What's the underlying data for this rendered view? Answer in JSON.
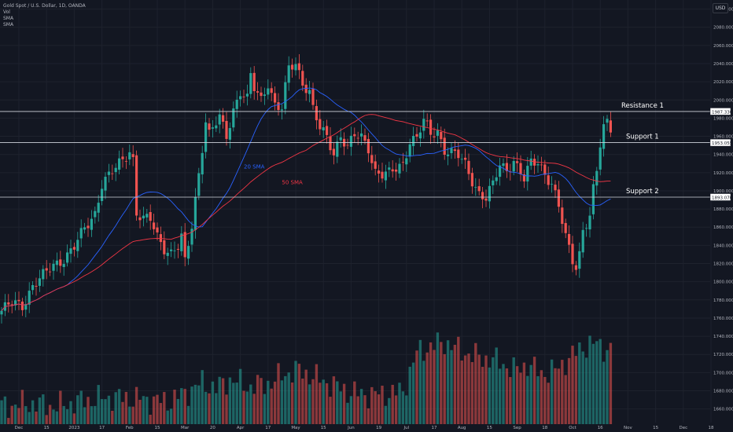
{
  "header": {
    "symbol": "Gold Spot / U.S. Dollar, 1D, OANDA",
    "vol_label": "Vol",
    "sma1_label": "SMA",
    "sma2_label": "SMA"
  },
  "currency": "USD",
  "colors": {
    "background": "#131722",
    "grid": "#1e222d",
    "up": "#26a69a",
    "down": "#ef5350",
    "sma20": "#2962ff",
    "sma50": "#f23645",
    "level_line": "#d1d4dc",
    "axis_text": "#b2b5be"
  },
  "chart_data": {
    "type": "candlestick",
    "ylim": [
      1645,
      2110
    ],
    "y_ticks": [
      1660,
      1680,
      1700,
      1720,
      1740,
      1760,
      1780,
      1800,
      1820,
      1840,
      1860,
      1880,
      1900,
      1920,
      1940,
      1960,
      1980,
      2000,
      2020,
      2040,
      2060,
      2080,
      2100
    ],
    "x_ticks": [
      "Dec",
      "15",
      "2023",
      "17",
      "Feb",
      "15",
      "Mar",
      "20",
      "Apr",
      "17",
      "May",
      "15",
      "Jun",
      "19",
      "Jul",
      "17",
      "Aug",
      "15",
      "Sep",
      "18",
      "Oct",
      "16",
      "Nov",
      "15",
      "Dec",
      "18"
    ],
    "x_tick_index": [
      5,
      13,
      21,
      29,
      37,
      45,
      53,
      61,
      69,
      77,
      85,
      93,
      101,
      109,
      117,
      125,
      133,
      141,
      149,
      157,
      165,
      173,
      181,
      189,
      197,
      205
    ],
    "close_anchors": [
      [
        0,
        1768
      ],
      [
        3,
        1776
      ],
      [
        6,
        1774
      ],
      [
        9,
        1796
      ],
      [
        12,
        1806
      ],
      [
        15,
        1818
      ],
      [
        18,
        1826
      ],
      [
        21,
        1838
      ],
      [
        24,
        1858
      ],
      [
        27,
        1876
      ],
      [
        29,
        1908
      ],
      [
        32,
        1920
      ],
      [
        35,
        1934
      ],
      [
        37,
        1945
      ],
      [
        38,
        1935
      ],
      [
        39,
        1876
      ],
      [
        41,
        1868
      ],
      [
        43,
        1868
      ],
      [
        45,
        1850
      ],
      [
        47,
        1838
      ],
      [
        49,
        1832
      ],
      [
        51,
        1838
      ],
      [
        52,
        1848
      ],
      [
        53,
        1820
      ],
      [
        55,
        1862
      ],
      [
        57,
        1920
      ],
      [
        59,
        1978
      ],
      [
        60,
        1962
      ],
      [
        63,
        1980
      ],
      [
        65,
        1960
      ],
      [
        67,
        1990
      ],
      [
        69,
        2010
      ],
      [
        71,
        2000
      ],
      [
        72,
        2026
      ],
      [
        73,
        2012
      ],
      [
        75,
        2000
      ],
      [
        77,
        2020
      ],
      [
        79,
        1995
      ],
      [
        81,
        1990
      ],
      [
        83,
        2034
      ],
      [
        85,
        2040
      ],
      [
        87,
        2020
      ],
      [
        89,
        2010
      ],
      [
        90,
        1990
      ],
      [
        92,
        1968
      ],
      [
        94,
        1958
      ],
      [
        96,
        1942
      ],
      [
        98,
        1962
      ],
      [
        100,
        1948
      ],
      [
        102,
        1960
      ],
      [
        104,
        1958
      ],
      [
        106,
        1948
      ],
      [
        108,
        1922
      ],
      [
        110,
        1918
      ],
      [
        112,
        1918
      ],
      [
        114,
        1924
      ],
      [
        116,
        1930
      ],
      [
        118,
        1956
      ],
      [
        120,
        1958
      ],
      [
        122,
        1976
      ],
      [
        124,
        1962
      ],
      [
        126,
        1966
      ],
      [
        128,
        1946
      ],
      [
        130,
        1942
      ],
      [
        132,
        1938
      ],
      [
        134,
        1928
      ],
      [
        136,
        1912
      ],
      [
        138,
        1898
      ],
      [
        140,
        1892
      ],
      [
        142,
        1906
      ],
      [
        144,
        1928
      ],
      [
        146,
        1924
      ],
      [
        148,
        1934
      ],
      [
        150,
        1920
      ],
      [
        151,
        1912
      ],
      [
        153,
        1930
      ],
      [
        155,
        1932
      ],
      [
        157,
        1920
      ],
      [
        159,
        1908
      ],
      [
        161,
        1882
      ],
      [
        163,
        1848
      ],
      [
        165,
        1824
      ],
      [
        166,
        1818
      ],
      [
        167,
        1832
      ],
      [
        168,
        1858
      ],
      [
        170,
        1872
      ],
      [
        171,
        1900
      ],
      [
        172,
        1920
      ],
      [
        173,
        1950
      ],
      [
        174,
        1970
      ],
      [
        175,
        1976
      ],
      [
        176,
        1970
      ]
    ],
    "volume_anchors": [
      [
        0,
        0.12
      ],
      [
        8,
        0.14
      ],
      [
        16,
        0.12
      ],
      [
        24,
        0.16
      ],
      [
        32,
        0.18
      ],
      [
        40,
        0.17
      ],
      [
        48,
        0.15
      ],
      [
        54,
        0.22
      ],
      [
        58,
        0.28
      ],
      [
        62,
        0.24
      ],
      [
        66,
        0.3
      ],
      [
        72,
        0.25
      ],
      [
        78,
        0.28
      ],
      [
        82,
        0.34
      ],
      [
        86,
        0.36
      ],
      [
        90,
        0.32
      ],
      [
        96,
        0.26
      ],
      [
        100,
        0.22
      ],
      [
        104,
        0.2
      ],
      [
        110,
        0.2
      ],
      [
        116,
        0.22
      ],
      [
        120,
        0.48
      ],
      [
        124,
        0.52
      ],
      [
        128,
        0.55
      ],
      [
        132,
        0.5
      ],
      [
        136,
        0.46
      ],
      [
        140,
        0.44
      ],
      [
        144,
        0.42
      ],
      [
        148,
        0.36
      ],
      [
        152,
        0.4
      ],
      [
        156,
        0.34
      ],
      [
        160,
        0.36
      ],
      [
        164,
        0.44
      ],
      [
        168,
        0.52
      ],
      [
        172,
        0.54
      ],
      [
        175,
        0.5
      ]
    ],
    "bars": 177,
    "indicators": [
      {
        "name": "20 SMA",
        "period": 20
      },
      {
        "name": "50 SMA",
        "period": 50
      }
    ],
    "levels": [
      {
        "name": "Resistance 1",
        "value": 1987.33,
        "price_label": "1987.330"
      },
      {
        "name": "Support 1",
        "value": 1953.055,
        "price_label": "1953.055"
      },
      {
        "name": "Support 2",
        "value": 1893.07,
        "price_label": "1893.070"
      }
    ]
  }
}
